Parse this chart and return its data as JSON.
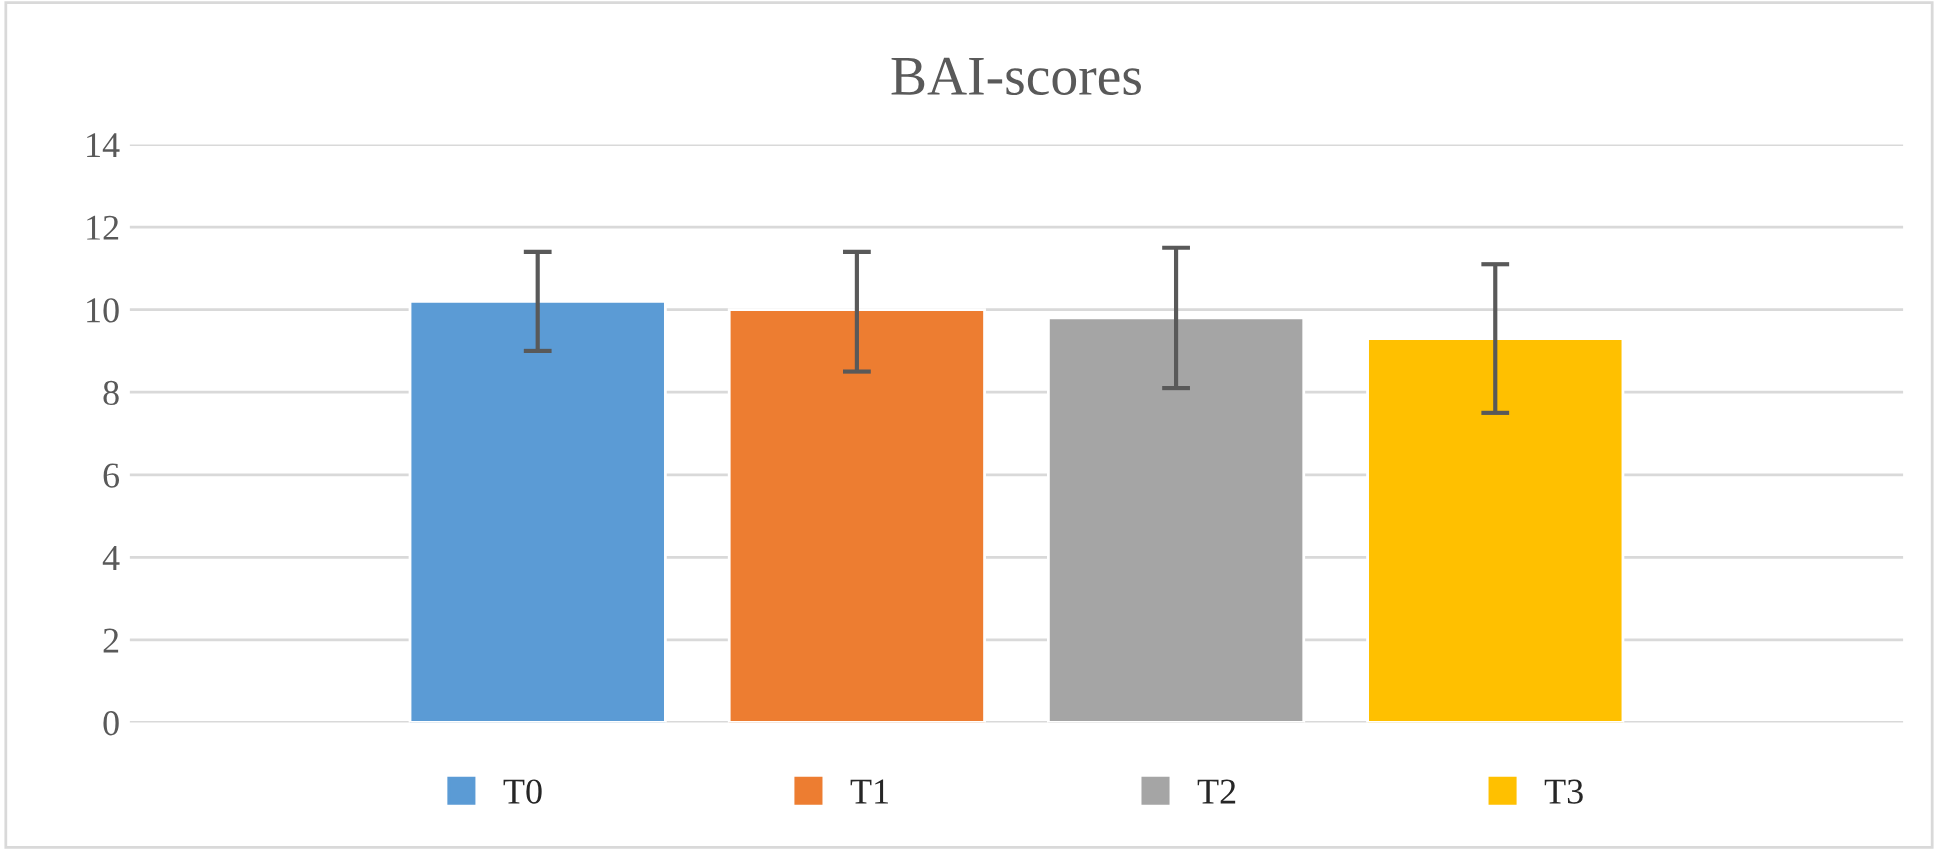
{
  "chart_data": {
    "type": "bar",
    "title": "BAI-scores",
    "categories": [
      null
    ],
    "series": [
      {
        "name": "T0",
        "color": "#5b9bd5",
        "values": [
          10.2
        ],
        "errors": [
          [
            9.0,
            11.4
          ]
        ]
      },
      {
        "name": "T1",
        "color": "#ed7d31",
        "values": [
          10.0
        ],
        "errors": [
          [
            8.5,
            11.4
          ]
        ]
      },
      {
        "name": "T2",
        "color": "#a5a5a5",
        "values": [
          9.8
        ],
        "errors": [
          [
            8.1,
            11.5
          ]
        ]
      },
      {
        "name": "T3",
        "color": "#ffc000",
        "values": [
          9.3
        ],
        "errors": [
          [
            7.5,
            11.1
          ]
        ]
      }
    ],
    "ylim": [
      0,
      14
    ],
    "yticks": [
      0,
      2,
      4,
      6,
      8,
      10,
      12,
      14
    ],
    "grid": "y",
    "legend": "bottom"
  }
}
